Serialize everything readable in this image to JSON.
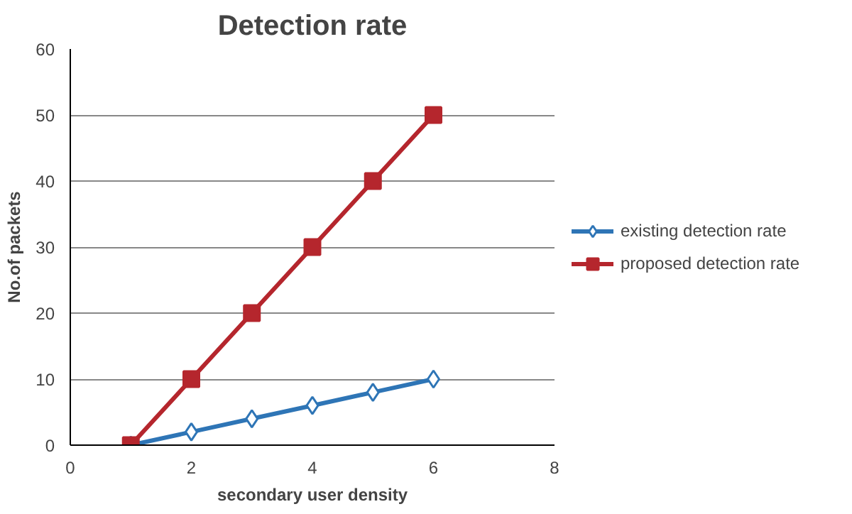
{
  "chart_data": {
    "type": "line",
    "title": "Detection rate",
    "xlabel": "secondary user density",
    "ylabel": "No.of packets",
    "x": [
      1,
      2,
      3,
      4,
      5,
      6
    ],
    "series": [
      {
        "name": "existing detection rate",
        "color": "#2e75b6",
        "values": [
          0,
          2,
          4,
          6,
          8,
          10
        ],
        "marker": "diamond"
      },
      {
        "name": "proposed detection rate",
        "color": "#b5262d",
        "values": [
          0,
          10,
          20,
          30,
          40,
          50
        ],
        "marker": "square"
      }
    ],
    "xlim": [
      0,
      8
    ],
    "xticks": [
      0,
      2,
      4,
      6,
      8
    ],
    "ylim": [
      0,
      60
    ],
    "yticks": [
      0,
      10,
      20,
      30,
      40,
      50,
      60
    ],
    "grid": "y",
    "legend": "right",
    "line_style": "solid"
  }
}
